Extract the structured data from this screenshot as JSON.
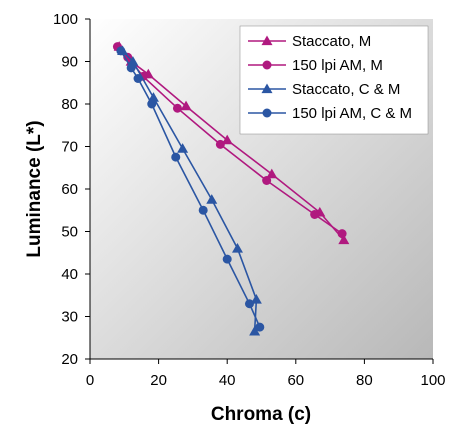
{
  "chart_data": {
    "type": "line",
    "xlabel": "Chroma (c)",
    "ylabel": "Luminance (L*)",
    "xlim": [
      0,
      100
    ],
    "ylim": [
      20,
      100
    ],
    "xticks": [
      "0",
      "20",
      "40",
      "60",
      "80",
      "100"
    ],
    "yticks": [
      "20",
      "30",
      "40",
      "50",
      "60",
      "70",
      "80",
      "90",
      "100"
    ],
    "grid": false,
    "legend": "top-right",
    "series": [
      {
        "name": "Staccato, M",
        "marker": "triangle",
        "color": "#b0197f",
        "x": [
          8.5,
          12,
          17,
          28,
          40,
          53,
          67,
          74
        ],
        "y": [
          93.5,
          90,
          87,
          79.5,
          71.5,
          63.5,
          54.5,
          48
        ]
      },
      {
        "name": "150 lpi AM, M",
        "marker": "circle",
        "color": "#b0197f",
        "x": [
          8,
          11,
          15.5,
          25.5,
          38,
          51.5,
          65.5,
          73.5
        ],
        "y": [
          93.5,
          91,
          86.5,
          79,
          70.5,
          62,
          54,
          49.5
        ]
      },
      {
        "name": "Staccato, C & M",
        "marker": "triangle",
        "color": "#2b56a3",
        "x": [
          9.5,
          12.5,
          18.5,
          27,
          35.5,
          43,
          48.5,
          48
        ],
        "y": [
          92.5,
          90,
          81.5,
          69.5,
          57.5,
          46,
          34,
          26.5
        ]
      },
      {
        "name": "150 lpi AM, C & M",
        "marker": "circle",
        "color": "#2b56a3",
        "x": [
          9,
          12,
          14,
          18,
          25,
          33,
          40,
          46.5,
          49.5
        ],
        "y": [
          92.5,
          88.5,
          86,
          80,
          67.5,
          55,
          43.5,
          33,
          27.5
        ]
      }
    ]
  }
}
